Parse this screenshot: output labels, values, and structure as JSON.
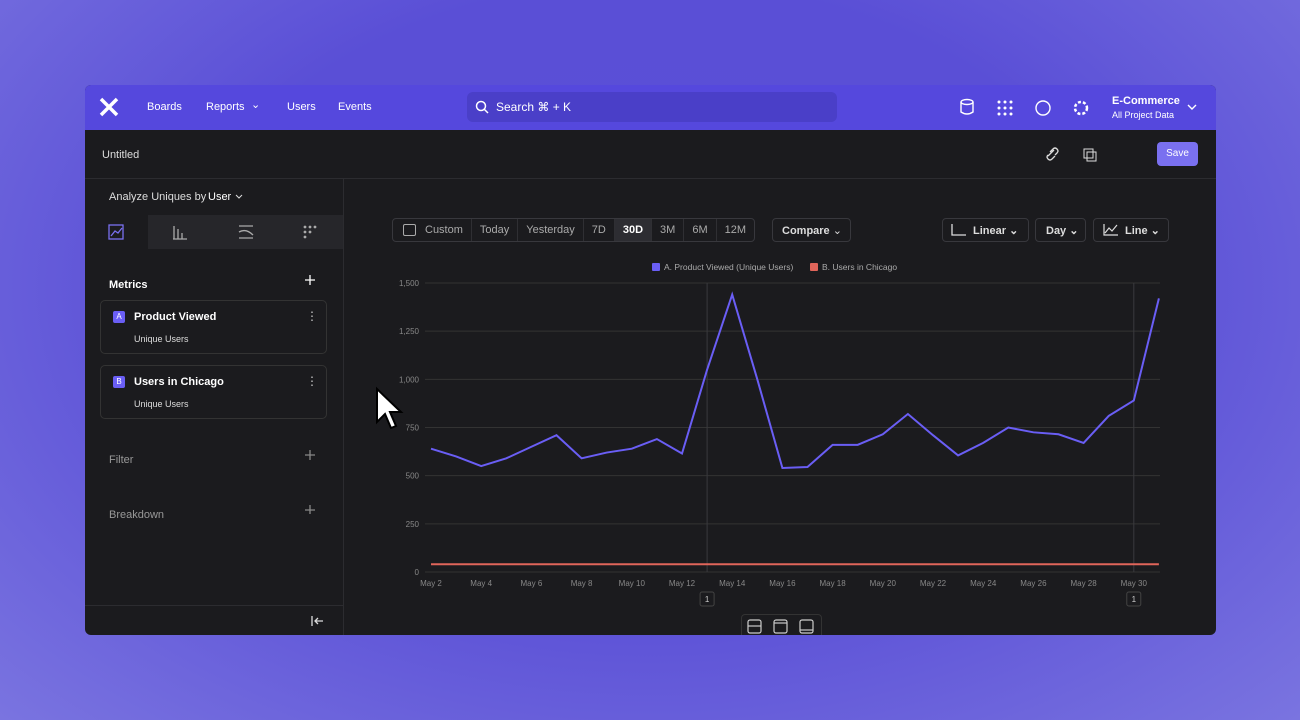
{
  "nav": {
    "items": [
      "Boards",
      "Reports",
      "Users",
      "Events"
    ],
    "search": "Search ⌘ + K",
    "project": "E-Commerce",
    "project_scope": "All Project Data"
  },
  "toolbar": {
    "title": "Untitled",
    "save": "Save"
  },
  "sidebar": {
    "analyze_label": "Analyze Uniques by",
    "analyze_value": "User",
    "metrics_title": "Metrics",
    "metrics": [
      {
        "letter": "A",
        "name": "Product Viewed",
        "measure": "Unique Users"
      },
      {
        "letter": "B",
        "name": "Users in Chicago",
        "measure": "Unique Users"
      }
    ],
    "filter": "Filter",
    "breakdown": "Breakdown"
  },
  "controls": {
    "ranges": [
      "Custom",
      "Today",
      "Yesterday",
      "7D",
      "30D",
      "3M",
      "6M",
      "12M"
    ],
    "selected_range": "30D",
    "compare": "Compare",
    "scale": "Linear",
    "interval": "Day",
    "chart_type": "Line"
  },
  "chart_data": {
    "type": "line",
    "categories": [
      "May 2",
      null,
      "May 4",
      null,
      "May 6",
      null,
      "May 8",
      null,
      "May 10",
      null,
      "May 12",
      null,
      "May 14",
      null,
      "May 16",
      null,
      "May 18",
      null,
      "May 20",
      null,
      "May 22",
      null,
      "May 24",
      null,
      "May 26",
      null,
      "May 28",
      null,
      "May 30",
      null
    ],
    "series": [
      {
        "name": "A. Product Viewed (Unique Users)",
        "color": "#6a5ef5",
        "values": [
          640,
          600,
          550,
          590,
          650,
          710,
          590,
          620,
          640,
          690,
          615,
          1050,
          1440,
          1000,
          540,
          545,
          660,
          660,
          715,
          820,
          710,
          605,
          670,
          750,
          725,
          715,
          670,
          810,
          890,
          1420
        ]
      },
      {
        "name": "B. Users in Chicago",
        "color": "#e0655a",
        "values": [
          40,
          40,
          40,
          40,
          40,
          40,
          40,
          40,
          40,
          40,
          40,
          40,
          40,
          40,
          40,
          40,
          40,
          40,
          40,
          40,
          40,
          40,
          40,
          40,
          40,
          40,
          40,
          40,
          40,
          40
        ]
      }
    ],
    "ylim": [
      0,
      1500
    ],
    "yticks": [
      0,
      250,
      500,
      750,
      {
        "value": 1000,
        "label": "1,000"
      },
      {
        "value": 1250,
        "label": "1,250"
      },
      {
        "value": 1500,
        "label": "1,500"
      }
    ],
    "grid": true,
    "annotations": [
      "1",
      "1"
    ]
  }
}
